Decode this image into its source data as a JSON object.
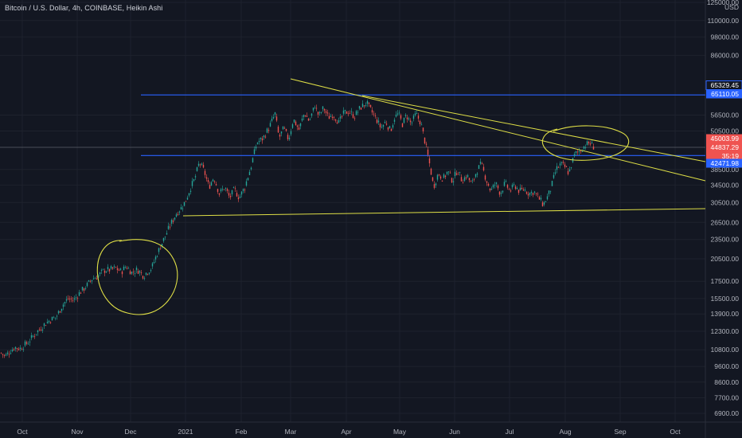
{
  "header": {
    "title": "Bitcoin / U.S. Dollar, 4h, COINBASE, Heikin Ashi"
  },
  "chart_data": {
    "type": "candlestick",
    "price_axis": {
      "unit": "USD",
      "scale": "log",
      "ticks": [
        "125000.00",
        "110000.00",
        "98000.00",
        "86000.00",
        "56500.00",
        "50500.00",
        "38500.00",
        "34500.00",
        "30500.00",
        "26500.00",
        "23500.00",
        "20500.00",
        "17500.00",
        "15500.00",
        "13900.00",
        "12300.00",
        "10800.00",
        "9600.00",
        "8600.00",
        "7700.00",
        "6900.00"
      ]
    },
    "price_badges": [
      {
        "label": "65329.45",
        "kind": "blue-outline"
      },
      {
        "label": "65110.05",
        "kind": "blue"
      },
      {
        "label": "45003.99",
        "kind": "red"
      },
      {
        "label": "44837.29",
        "kind": "red"
      },
      {
        "label": "35:19",
        "kind": "red"
      },
      {
        "label": "42471.98",
        "kind": "blue"
      }
    ],
    "time_axis": {
      "ticks": [
        "Oct",
        "Nov",
        "Dec",
        "2021",
        "Feb",
        "Mar",
        "Apr",
        "May",
        "Jun",
        "Jul",
        "Aug",
        "Sep",
        "Oct"
      ]
    },
    "price_path": [
      [
        0,
        10600
      ],
      [
        6,
        10300
      ],
      [
        12,
        10700
      ],
      [
        18,
        11000
      ],
      [
        25,
        10900
      ],
      [
        35,
        11400
      ],
      [
        45,
        12200
      ],
      [
        55,
        12900
      ],
      [
        62,
        13300
      ],
      [
        70,
        13600
      ],
      [
        78,
        14800
      ],
      [
        85,
        15500
      ],
      [
        92,
        15300
      ],
      [
        100,
        16200
      ],
      [
        108,
        16900
      ],
      [
        115,
        17800
      ],
      [
        122,
        18100
      ],
      [
        130,
        18900
      ],
      [
        138,
        19000
      ],
      [
        145,
        19200
      ],
      [
        152,
        18700
      ],
      [
        158,
        19500
      ],
      [
        165,
        18600
      ],
      [
        172,
        19000
      ],
      [
        180,
        18200
      ],
      [
        185,
        18800
      ],
      [
        190,
        19200
      ],
      [
        196,
        21000
      ],
      [
        205,
        23500
      ],
      [
        215,
        26500
      ],
      [
        222,
        28500
      ],
      [
        228,
        29500
      ],
      [
        233,
        31000
      ],
      [
        238,
        33500
      ],
      [
        244,
        36000
      ],
      [
        250,
        40500
      ],
      [
        256,
        38000
      ],
      [
        262,
        34000
      ],
      [
        268,
        36500
      ],
      [
        275,
        32500
      ],
      [
        282,
        34000
      ],
      [
        288,
        31500
      ],
      [
        294,
        33500
      ],
      [
        300,
        31500
      ],
      [
        307,
        34000
      ],
      [
        315,
        39500
      ],
      [
        322,
        46500
      ],
      [
        330,
        48000
      ],
      [
        338,
        52000
      ],
      [
        345,
        57000
      ],
      [
        350,
        48000
      ],
      [
        356,
        51500
      ],
      [
        362,
        47500
      ],
      [
        368,
        55000
      ],
      [
        375,
        51000
      ],
      [
        382,
        57500
      ],
      [
        388,
        54000
      ],
      [
        395,
        60500
      ],
      [
        400,
        56000
      ],
      [
        406,
        59500
      ],
      [
        412,
        55500
      ],
      [
        418,
        57000
      ],
      [
        425,
        53500
      ],
      [
        432,
        57500
      ],
      [
        438,
        58000
      ],
      [
        445,
        56000
      ],
      [
        452,
        59500
      ],
      [
        460,
        61500
      ],
      [
        466,
        58000
      ],
      [
        472,
        55000
      ],
      [
        478,
        51500
      ],
      [
        484,
        54000
      ],
      [
        490,
        50500
      ],
      [
        495,
        55500
      ],
      [
        500,
        57000
      ],
      [
        505,
        53000
      ],
      [
        510,
        56500
      ],
      [
        516,
        53000
      ],
      [
        522,
        57000
      ],
      [
        528,
        53500
      ],
      [
        534,
        46000
      ],
      [
        540,
        39000
      ],
      [
        544,
        34000
      ],
      [
        550,
        37500
      ],
      [
        556,
        36000
      ],
      [
        562,
        38000
      ],
      [
        568,
        35500
      ],
      [
        574,
        38500
      ],
      [
        580,
        35500
      ],
      [
        586,
        37000
      ],
      [
        592,
        34500
      ],
      [
        598,
        38000
      ],
      [
        604,
        40000
      ],
      [
        610,
        36000
      ],
      [
        616,
        33000
      ],
      [
        622,
        35000
      ],
      [
        628,
        32500
      ],
      [
        634,
        35000
      ],
      [
        640,
        33000
      ],
      [
        646,
        34500
      ],
      [
        652,
        33000
      ],
      [
        658,
        33500
      ],
      [
        664,
        32500
      ],
      [
        670,
        33000
      ],
      [
        676,
        31500
      ],
      [
        682,
        30000
      ],
      [
        688,
        32000
      ],
      [
        692,
        34000
      ],
      [
        698,
        38500
      ],
      [
        704,
        40000
      ],
      [
        710,
        39000
      ],
      [
        714,
        37500
      ],
      [
        718,
        40500
      ],
      [
        722,
        43000
      ],
      [
        728,
        44000
      ],
      [
        734,
        45500
      ],
      [
        740,
        46500
      ],
      [
        746,
        45000
      ]
    ],
    "annotations": [
      {
        "type": "horizontal-line",
        "price": 65110,
        "color": "#2962ff"
      },
      {
        "type": "horizontal-line",
        "price": 42472,
        "color": "#2962ff"
      },
      {
        "type": "horizontal-line",
        "price": 45004,
        "color": "#5d606b"
      },
      {
        "type": "trendline",
        "color": "#dede46"
      },
      {
        "type": "trendline",
        "color": "#dede46"
      },
      {
        "type": "trendline",
        "color": "#dede46"
      },
      {
        "type": "ellipse",
        "color": "#dede46"
      },
      {
        "type": "ellipse",
        "color": "#dede46"
      }
    ],
    "colors": {
      "background": "#131722",
      "up": "#26a69a",
      "down": "#ef5350",
      "drawing": "#dede46",
      "level": "#2962ff",
      "axis_text": "#b2b5be"
    }
  }
}
